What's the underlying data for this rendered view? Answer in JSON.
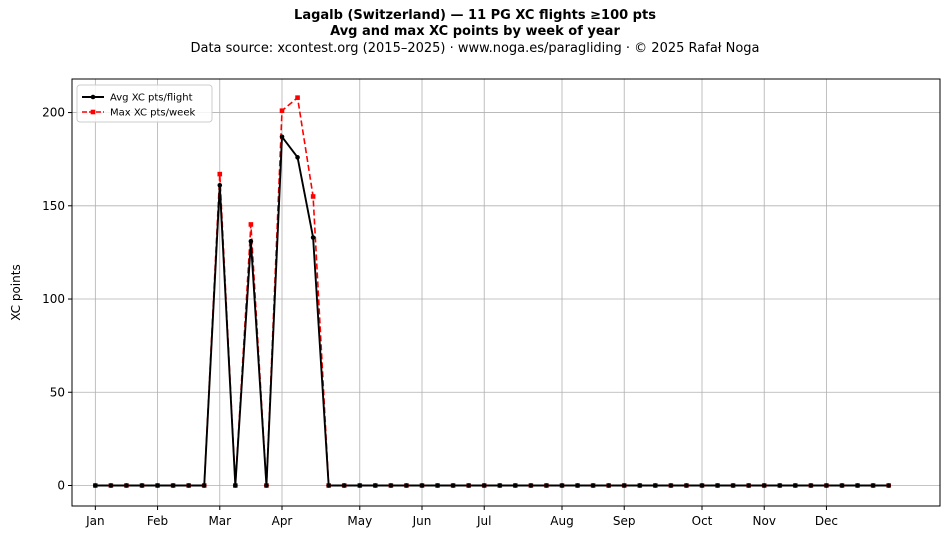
{
  "header": {
    "title": "Lagalb (Switzerland)  —  11 PG XC flights ≥100 pts",
    "subtitle": "Avg and max XC points by week of year",
    "source": "Data source: xcontest.org (2015–2025)  ·  www.noga.es/paragliding  ·  © 2025 Rafał Noga"
  },
  "chart_data": {
    "type": "line",
    "title": "Lagalb (Switzerland)  —  11 PG XC flights ≥100 pts",
    "subtitle": "Avg and max XC points by week of year",
    "xlabel": "",
    "ylabel": "XC points",
    "x_unit": "week of year",
    "xlim": [
      -1.5,
      54.3
    ],
    "ylim": [
      -11,
      218
    ],
    "grid": true,
    "legend_position": "top-left",
    "month_ticks": [
      {
        "label": "Jan",
        "week": 0
      },
      {
        "label": "Feb",
        "week": 4
      },
      {
        "label": "Mar",
        "week": 8
      },
      {
        "label": "Apr",
        "week": 12
      },
      {
        "label": "May",
        "week": 17
      },
      {
        "label": "Jun",
        "week": 21
      },
      {
        "label": "Jul",
        "week": 25
      },
      {
        "label": "Aug",
        "week": 30
      },
      {
        "label": "Sep",
        "week": 34
      },
      {
        "label": "Oct",
        "week": 39
      },
      {
        "label": "Nov",
        "week": 43
      },
      {
        "label": "Dec",
        "week": 47
      }
    ],
    "y_ticks": [
      0,
      50,
      100,
      150,
      200
    ],
    "x": [
      0,
      1,
      2,
      3,
      4,
      5,
      6,
      7,
      8,
      9,
      10,
      11,
      12,
      13,
      14,
      15,
      16,
      17,
      18,
      19,
      20,
      21,
      22,
      23,
      24,
      25,
      26,
      27,
      28,
      29,
      30,
      31,
      32,
      33,
      34,
      35,
      36,
      37,
      38,
      39,
      40,
      41,
      42,
      43,
      44,
      45,
      46,
      47,
      48,
      49,
      50,
      51
    ],
    "series": [
      {
        "name": "Avg XC pts/flight",
        "color": "#000000",
        "style": "solid",
        "marker": "circle",
        "values": [
          0,
          0,
          0,
          0,
          0,
          0,
          0,
          0,
          161,
          0,
          131,
          0,
          187,
          176,
          133,
          0,
          0,
          0,
          0,
          0,
          0,
          0,
          0,
          0,
          0,
          0,
          0,
          0,
          0,
          0,
          0,
          0,
          0,
          0,
          0,
          0,
          0,
          0,
          0,
          0,
          0,
          0,
          0,
          0,
          0,
          0,
          0,
          0,
          0,
          0,
          0,
          0
        ]
      },
      {
        "name": "Max XC pts/week",
        "color": "#ff0000",
        "style": "dashed",
        "marker": "square",
        "values": [
          0,
          0,
          0,
          0,
          0,
          0,
          0,
          0,
          167,
          0,
          140,
          0,
          201,
          208,
          155,
          0,
          0,
          0,
          0,
          0,
          0,
          0,
          0,
          0,
          0,
          0,
          0,
          0,
          0,
          0,
          0,
          0,
          0,
          0,
          0,
          0,
          0,
          0,
          0,
          0,
          0,
          0,
          0,
          0,
          0,
          0,
          0,
          0,
          0,
          0,
          0,
          0
        ]
      }
    ]
  }
}
